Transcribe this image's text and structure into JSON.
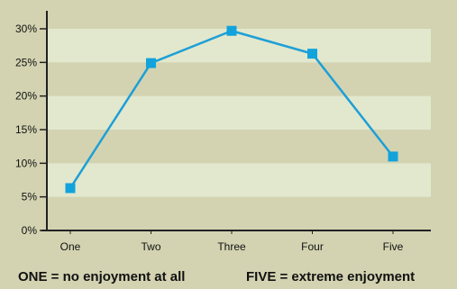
{
  "chart_data": {
    "type": "line",
    "categories": [
      "One",
      "Two",
      "Three",
      "Four",
      "Five"
    ],
    "values": [
      6.3,
      24.9,
      29.7,
      26.3,
      11.0
    ],
    "ylim": [
      0,
      30
    ],
    "yticks": [
      0,
      5,
      10,
      15,
      20,
      25,
      30
    ],
    "ytick_labels": [
      "0%",
      "5%",
      "10%",
      "15%",
      "20%",
      "25%",
      "30%"
    ],
    "caption_left": "ONE = no enjoyment at all",
    "caption_right": "FIVE = extreme enjoyment",
    "colors": {
      "background": "#d3d3b2",
      "band": "#e2e8cd",
      "line": "#1e9fd6",
      "marker": "#12a3dc",
      "axis": "#222222"
    }
  }
}
